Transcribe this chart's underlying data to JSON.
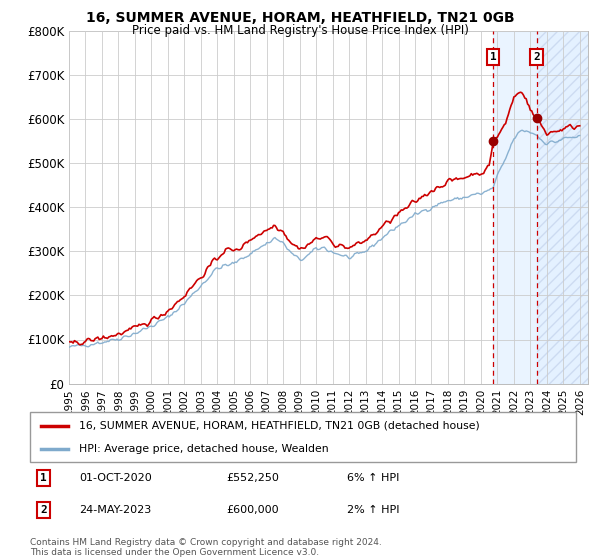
{
  "title1": "16, SUMMER AVENUE, HORAM, HEATHFIELD, TN21 0GB",
  "title2": "Price paid vs. HM Land Registry's House Price Index (HPI)",
  "legend_line1": "16, SUMMER AVENUE, HORAM, HEATHFIELD, TN21 0GB (detached house)",
  "legend_line2": "HPI: Average price, detached house, Wealden",
  "annotation1": {
    "label": "1",
    "date": "01-OCT-2020",
    "price": "£552,250",
    "hpi": "6% ↑ HPI",
    "x": 2020.75
  },
  "annotation2": {
    "label": "2",
    "date": "24-MAY-2023",
    "price": "£600,000",
    "hpi": "2% ↑ HPI",
    "x": 2023.38
  },
  "footer": "Contains HM Land Registry data © Crown copyright and database right 2024.\nThis data is licensed under the Open Government Licence v3.0.",
  "line_color_red": "#cc0000",
  "line_color_blue": "#7faacc",
  "dot_color": "#990000",
  "grid_color": "#cccccc",
  "shade_color": "#ddeeff",
  "ylim": [
    0,
    800000
  ],
  "xlim": [
    1995.0,
    2026.5
  ],
  "yticks": [
    0,
    100000,
    200000,
    300000,
    400000,
    500000,
    600000,
    700000,
    800000
  ],
  "ylabels": [
    "£0",
    "£100K",
    "£200K",
    "£300K",
    "£400K",
    "£500K",
    "£600K",
    "£700K",
    "£800K"
  ]
}
